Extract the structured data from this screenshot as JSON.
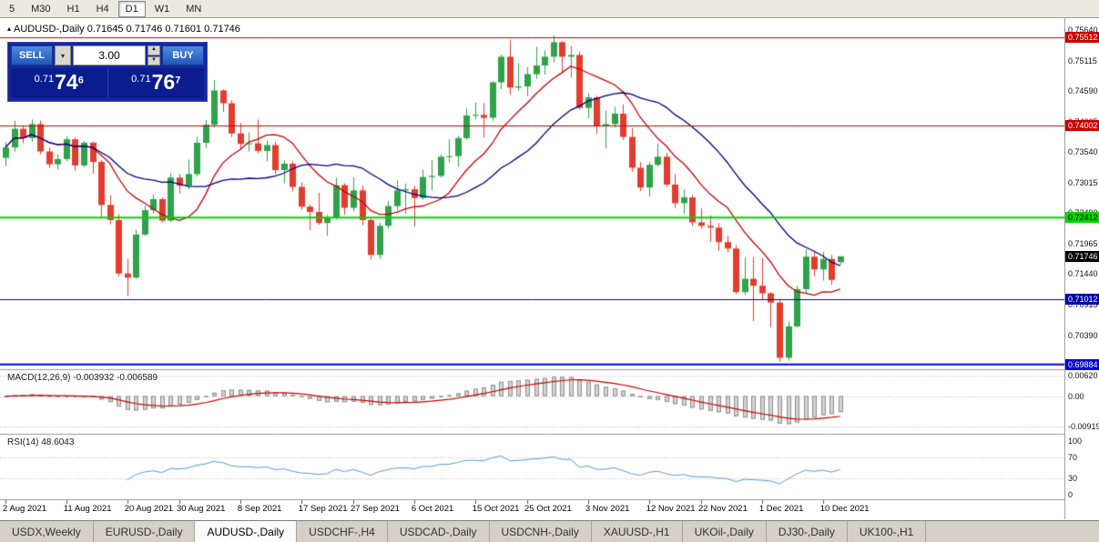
{
  "window": {
    "marker": "▴",
    "symbol": "AUDUSD-,Daily",
    "ohlc": "0.71645 0.71746 0.71601 0.71746"
  },
  "toolbar": {
    "timeframes": [
      "5",
      "M30",
      "H1",
      "H4",
      "D1",
      "W1",
      "MN"
    ],
    "active": "D1"
  },
  "trade_panel": {
    "sell_label": "SELL",
    "buy_label": "BUY",
    "volume": "3.00",
    "sell_price": {
      "prefix": "0.71",
      "big": "74",
      "sup": "6"
    },
    "buy_price": {
      "prefix": "0.71",
      "big": "76",
      "sup": "7"
    }
  },
  "tabs": {
    "items": [
      "USDX,Weekly",
      "EURUSD-,Daily",
      "AUDUSD-,Daily",
      "USDCHF-,H4",
      "USDCAD-,Daily",
      "USDCNH-,Daily",
      "XAUUSD-,H1",
      "UKOil-,Daily",
      "DJ30-,Daily",
      "UK100-,H1"
    ],
    "active_index": 2
  },
  "x_axis": {
    "dates": [
      {
        "i": 0,
        "label": "2 Aug 2021"
      },
      {
        "i": 7,
        "label": "11 Aug 2021"
      },
      {
        "i": 14,
        "label": "20 Aug 2021"
      },
      {
        "i": 20,
        "label": "30 Aug 2021"
      },
      {
        "i": 27,
        "label": "8 Sep 2021"
      },
      {
        "i": 34,
        "label": "17 Sep 2021"
      },
      {
        "i": 40,
        "label": "27 Sep 2021"
      },
      {
        "i": 47,
        "label": "6 Oct 2021"
      },
      {
        "i": 54,
        "label": "15 Oct 2021"
      },
      {
        "i": 60,
        "label": "25 Oct 2021"
      },
      {
        "i": 67,
        "label": "3 Nov 2021"
      },
      {
        "i": 74,
        "label": "12 Nov 2021"
      },
      {
        "i": 80,
        "label": "22 Nov 2021"
      },
      {
        "i": 87,
        "label": "1 Dec 2021"
      },
      {
        "i": 94,
        "label": "10 Dec 2021"
      }
    ]
  },
  "chart_data": {
    "type": "candlestick",
    "title": "AUDUSD-,Daily",
    "current_ohlc": {
      "open": "0.71645",
      "high": "0.71746",
      "low": "0.71601",
      "close": "0.71746"
    },
    "y_axis": {
      "max": 0.7564,
      "step": 0.00525,
      "labels": [
        "0.75640",
        "0.75115",
        "0.74590",
        "0.74065",
        "0.73540",
        "0.73015",
        "0.72490",
        "0.71965",
        "0.71440",
        "0.70915",
        "0.70390"
      ]
    },
    "current_price": {
      "price": 0.71746,
      "label": "0.71746",
      "bg": "#000000",
      "text": "#ffffff"
    },
    "hlines": [
      {
        "price": 0.75512,
        "label": "0.75512",
        "color": "#cc0000",
        "text": "#ffffff",
        "width": 1
      },
      {
        "price": 0.74002,
        "label": "0.74002",
        "color": "#cc0000",
        "text": "#ffffff",
        "width": 1
      },
      {
        "price": 0.72412,
        "label": "0.72412",
        "color": "#00d400",
        "text": "#000000",
        "width": 2
      },
      {
        "price": 0.71012,
        "label": "0.71012",
        "color": "#0000aa",
        "text": "#ffffff",
        "width": 1
      },
      {
        "price": 0.69884,
        "label": "0.69884",
        "color": "#0000cc",
        "text": "#ffffff",
        "width": 2
      }
    ],
    "colors": {
      "bull": "#2fa24a",
      "bear": "#e23d2e",
      "ma_fast": "#cc0000",
      "ma_slow": "#000080",
      "rsi": "#5b9bd5",
      "macd_hist_fill": "#d4d4d4",
      "macd_hist_stroke": "#8f8f8f",
      "macd_signal": "#cc0000"
    },
    "ma": [
      {
        "type": "sma",
        "period": 10,
        "color_key": "ma_fast"
      },
      {
        "type": "sma",
        "period": 20,
        "color_key": "ma_slow"
      }
    ],
    "indicators": [
      {
        "name": "MACD",
        "label": "MACD(12,26,9)",
        "values": "-0.003932 -0.006589",
        "axis_labels": [
          "0.00620",
          "0.00",
          "-0.00919"
        ],
        "axis_values": [
          0.0062,
          0,
          -0.00919
        ]
      },
      {
        "name": "RSI",
        "label": "RSI(14)",
        "values": "48.6043",
        "axis_labels": [
          "100",
          "70",
          "30",
          "0"
        ],
        "axis_values": [
          100,
          70,
          30,
          0
        ],
        "levels": [
          70,
          30
        ]
      }
    ],
    "candles": [
      [
        0.7344,
        0.7371,
        0.733,
        0.7362
      ],
      [
        0.7362,
        0.7408,
        0.7355,
        0.7394
      ],
      [
        0.7394,
        0.7398,
        0.7369,
        0.7378
      ],
      [
        0.7378,
        0.741,
        0.7372,
        0.7402
      ],
      [
        0.7402,
        0.7408,
        0.735,
        0.7355
      ],
      [
        0.7355,
        0.7362,
        0.7327,
        0.7333
      ],
      [
        0.7333,
        0.735,
        0.7324,
        0.7342
      ],
      [
        0.7342,
        0.7381,
        0.7338,
        0.7376
      ],
      [
        0.7376,
        0.7379,
        0.7322,
        0.7331
      ],
      [
        0.7331,
        0.7373,
        0.7328,
        0.737
      ],
      [
        0.737,
        0.7372,
        0.7317,
        0.7337
      ],
      [
        0.7337,
        0.734,
        0.7242,
        0.7263
      ],
      [
        0.7263,
        0.728,
        0.723,
        0.7237
      ],
      [
        0.7237,
        0.7247,
        0.714,
        0.7145
      ],
      [
        0.7145,
        0.717,
        0.7106,
        0.7138
      ],
      [
        0.7138,
        0.722,
        0.7136,
        0.7212
      ],
      [
        0.7212,
        0.7262,
        0.721,
        0.7254
      ],
      [
        0.7254,
        0.7281,
        0.7248,
        0.7273
      ],
      [
        0.7273,
        0.7276,
        0.7233,
        0.7236
      ],
      [
        0.7236,
        0.7318,
        0.7233,
        0.731
      ],
      [
        0.731,
        0.7316,
        0.7283,
        0.7296
      ],
      [
        0.7296,
        0.7341,
        0.729,
        0.7316
      ],
      [
        0.7316,
        0.738,
        0.7312,
        0.737
      ],
      [
        0.737,
        0.7409,
        0.7361,
        0.7401
      ],
      [
        0.7401,
        0.7478,
        0.7396,
        0.746
      ],
      [
        0.746,
        0.7462,
        0.7423,
        0.7438
      ],
      [
        0.7438,
        0.7443,
        0.738,
        0.7386
      ],
      [
        0.7386,
        0.7404,
        0.7358,
        0.7368
      ],
      [
        0.7368,
        0.7388,
        0.7355,
        0.7369
      ],
      [
        0.7369,
        0.741,
        0.7352,
        0.7356
      ],
      [
        0.7356,
        0.7374,
        0.7338,
        0.7366
      ],
      [
        0.7366,
        0.7372,
        0.7316,
        0.7323
      ],
      [
        0.7323,
        0.734,
        0.73,
        0.7334
      ],
      [
        0.7334,
        0.7338,
        0.7286,
        0.7294
      ],
      [
        0.7294,
        0.7302,
        0.7255,
        0.726
      ],
      [
        0.726,
        0.7264,
        0.722,
        0.7251
      ],
      [
        0.7251,
        0.7284,
        0.7229,
        0.7232
      ],
      [
        0.7232,
        0.7246,
        0.721,
        0.7241
      ],
      [
        0.7241,
        0.731,
        0.7238,
        0.7297
      ],
      [
        0.7297,
        0.73,
        0.7246,
        0.7258
      ],
      [
        0.7258,
        0.7311,
        0.7252,
        0.7288
      ],
      [
        0.7288,
        0.7297,
        0.7228,
        0.7237
      ],
      [
        0.7237,
        0.7242,
        0.7169,
        0.7177
      ],
      [
        0.7177,
        0.7232,
        0.717,
        0.7227
      ],
      [
        0.7227,
        0.727,
        0.7222,
        0.7261
      ],
      [
        0.7261,
        0.7305,
        0.7254,
        0.7288
      ],
      [
        0.7288,
        0.73,
        0.7248,
        0.729
      ],
      [
        0.729,
        0.7296,
        0.7226,
        0.7275
      ],
      [
        0.7275,
        0.7324,
        0.7272,
        0.7311
      ],
      [
        0.7311,
        0.734,
        0.7288,
        0.7313
      ],
      [
        0.7313,
        0.735,
        0.731,
        0.7346
      ],
      [
        0.7346,
        0.7376,
        0.7336,
        0.7347
      ],
      [
        0.7347,
        0.7382,
        0.7329,
        0.7378
      ],
      [
        0.7378,
        0.7429,
        0.7375,
        0.7417
      ],
      [
        0.7417,
        0.7439,
        0.741,
        0.7418
      ],
      [
        0.7418,
        0.7438,
        0.7379,
        0.7413
      ],
      [
        0.7413,
        0.7476,
        0.7408,
        0.7474
      ],
      [
        0.7474,
        0.7522,
        0.7462,
        0.7518
      ],
      [
        0.7518,
        0.7547,
        0.7453,
        0.7465
      ],
      [
        0.7465,
        0.7507,
        0.7459,
        0.7467
      ],
      [
        0.7467,
        0.75,
        0.745,
        0.7488
      ],
      [
        0.7488,
        0.7535,
        0.748,
        0.7503
      ],
      [
        0.7503,
        0.7529,
        0.7487,
        0.7518
      ],
      [
        0.7518,
        0.7555,
        0.7508,
        0.7543
      ],
      [
        0.7543,
        0.7545,
        0.749,
        0.7518
      ],
      [
        0.7518,
        0.7536,
        0.7482,
        0.7521
      ],
      [
        0.7521,
        0.7527,
        0.7427,
        0.743
      ],
      [
        0.743,
        0.7455,
        0.7412,
        0.7448
      ],
      [
        0.7448,
        0.7451,
        0.7385,
        0.7399
      ],
      [
        0.7399,
        0.7425,
        0.736,
        0.7402
      ],
      [
        0.7402,
        0.7432,
        0.7396,
        0.742
      ],
      [
        0.742,
        0.7436,
        0.7375,
        0.738
      ],
      [
        0.738,
        0.7395,
        0.732,
        0.7327
      ],
      [
        0.7327,
        0.7337,
        0.7287,
        0.7293
      ],
      [
        0.7293,
        0.7337,
        0.7277,
        0.7332
      ],
      [
        0.7332,
        0.7369,
        0.7329,
        0.7346
      ],
      [
        0.7346,
        0.7353,
        0.7294,
        0.7298
      ],
      [
        0.7298,
        0.7316,
        0.7258,
        0.7266
      ],
      [
        0.7266,
        0.729,
        0.7248,
        0.7276
      ],
      [
        0.7276,
        0.728,
        0.7227,
        0.7233
      ],
      [
        0.7233,
        0.7257,
        0.7222,
        0.7227
      ],
      [
        0.7227,
        0.7245,
        0.72,
        0.7224
      ],
      [
        0.7224,
        0.7232,
        0.7184,
        0.7199
      ],
      [
        0.7199,
        0.721,
        0.7181,
        0.7188
      ],
      [
        0.7188,
        0.7194,
        0.711,
        0.7113
      ],
      [
        0.7113,
        0.7172,
        0.7109,
        0.7136
      ],
      [
        0.7136,
        0.7173,
        0.7063,
        0.7124
      ],
      [
        0.7124,
        0.7172,
        0.71,
        0.7111
      ],
      [
        0.7111,
        0.7113,
        0.7052,
        0.7095
      ],
      [
        0.7095,
        0.7101,
        0.6993,
        0.7
      ],
      [
        0.7,
        0.7063,
        0.6995,
        0.7054
      ],
      [
        0.7054,
        0.7124,
        0.7052,
        0.7118
      ],
      [
        0.7118,
        0.7187,
        0.711,
        0.7174
      ],
      [
        0.7174,
        0.7184,
        0.714,
        0.7152
      ],
      [
        0.7152,
        0.7182,
        0.7133,
        0.717
      ],
      [
        0.717,
        0.7177,
        0.7126,
        0.7134
      ],
      [
        0.71645,
        0.71746,
        0.71601,
        0.71746
      ]
    ]
  }
}
